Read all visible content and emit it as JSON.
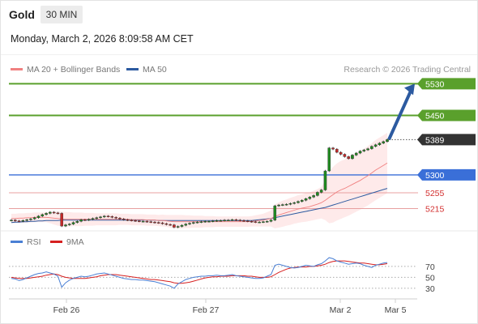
{
  "header": {
    "instrument": "Gold",
    "timeframe": "30 MIN",
    "datetime": "Monday, March 2, 2026 8:09:58 AM CET"
  },
  "legend": {
    "ma20_label": "MA 20 + Bollinger Bands",
    "ma50_label": "MA 50",
    "credit": "Research © 2026 Trading Central"
  },
  "rsi_legend": {
    "rsi_label": "RSI",
    "ma9_label": "9MA"
  },
  "colors": {
    "target_line": "#5aa02c",
    "support_line": "#3a6fd8",
    "last_price_badge": "#333333",
    "resistance_red": "#d32f2f",
    "red_level_line": "#e8a0a0",
    "bollinger_fill": "#fde3e3",
    "ma20": "#f08080",
    "ma50": "#2c5aa0",
    "arrow": "#2c5aa0",
    "rsi": "#4a7fd4",
    "rsi_ma": "#d62020",
    "candle_up": "#1f8a1f",
    "candle_down": "#c62828"
  },
  "chart_data": {
    "type": "candlestick",
    "x_ticks": [
      "Feb 26",
      "Feb 27",
      "Mar 2",
      "Mar 5"
    ],
    "ylim": [
      5165,
      5545
    ],
    "levels": [
      {
        "label": "5530",
        "value": 5530,
        "kind": "target"
      },
      {
        "label": "5450",
        "value": 5450,
        "kind": "target"
      },
      {
        "label": "5389",
        "value": 5389,
        "kind": "last"
      },
      {
        "label": "5300",
        "value": 5300,
        "kind": "support"
      },
      {
        "label": "5255",
        "value": 5255,
        "kind": "red"
      },
      {
        "label": "5215",
        "value": 5215,
        "kind": "red"
      }
    ],
    "closes": [
      5186,
      5184,
      5183,
      5185,
      5187,
      5189,
      5192,
      5196,
      5200,
      5203,
      5206,
      5204,
      5203,
      5171,
      5174,
      5176,
      5180,
      5183,
      5187,
      5186,
      5188,
      5190,
      5192,
      5194,
      5196,
      5195,
      5193,
      5191,
      5189,
      5187,
      5186,
      5185,
      5184,
      5183,
      5183,
      5182,
      5181,
      5180,
      5179,
      5177,
      5175,
      5174,
      5168,
      5170,
      5173,
      5176,
      5178,
      5180,
      5181,
      5182,
      5183,
      5183,
      5184,
      5185,
      5185,
      5186,
      5186,
      5187,
      5186,
      5185,
      5184,
      5183,
      5182,
      5181,
      5181,
      5182,
      5183,
      5186,
      5222,
      5224,
      5225,
      5226,
      5228,
      5230,
      5233,
      5236,
      5240,
      5244,
      5248,
      5256,
      5262,
      5310,
      5368,
      5365,
      5357,
      5352,
      5346,
      5341,
      5350,
      5355,
      5360,
      5363,
      5366,
      5372,
      5376,
      5380,
      5384,
      5389
    ],
    "ma20": [
      5190,
      5190,
      5191,
      5191,
      5192,
      5192,
      5193,
      5193,
      5193,
      5193,
      5192,
      5191,
      5190,
      5189,
      5188,
      5188,
      5188,
      5188,
      5188,
      5188,
      5188,
      5188,
      5188,
      5188,
      5188,
      5188,
      5188,
      5188,
      5188,
      5188,
      5188,
      5187,
      5187,
      5187,
      5187,
      5186,
      5186,
      5186,
      5185,
      5185,
      5184,
      5183,
      5182,
      5182,
      5182,
      5182,
      5182,
      5182,
      5182,
      5182,
      5182,
      5182,
      5182,
      5182,
      5182,
      5182,
      5182,
      5182,
      5182,
      5182,
      5182,
      5182,
      5183,
      5184,
      5185,
      5186,
      5188,
      5190,
      5195,
      5199,
      5202,
      5205,
      5208,
      5211,
      5214,
      5216,
      5218,
      5220,
      5223,
      5226,
      5230,
      5236,
      5243,
      5250,
      5257,
      5262,
      5266,
      5271,
      5276,
      5281,
      5286,
      5292,
      5298,
      5305,
      5312,
      5318,
      5324,
      5330
    ],
    "ma50": [
      5180,
      5181,
      5181,
      5182,
      5182,
      5183,
      5183,
      5184,
      5184,
      5185,
      5185,
      5185,
      5185,
      5186,
      5186,
      5186,
      5186,
      5186,
      5186,
      5186,
      5186,
      5186,
      5186,
      5186,
      5186,
      5186,
      5186,
      5186,
      5186,
      5186,
      5186,
      5186,
      5186,
      5186,
      5186,
      5186,
      5186,
      5186,
      5185,
      5185,
      5185,
      5185,
      5185,
      5185,
      5185,
      5185,
      5185,
      5185,
      5185,
      5185,
      5185,
      5185,
      5185,
      5185,
      5185,
      5185,
      5185,
      5185,
      5185,
      5185,
      5185,
      5185,
      5185,
      5186,
      5187,
      5188,
      5189,
      5190,
      5192,
      5194,
      5196,
      5198,
      5200,
      5202,
      5204,
      5206,
      5208,
      5210,
      5212,
      5214,
      5216,
      5218,
      5221,
      5224,
      5227,
      5230,
      5233,
      5236,
      5239,
      5242,
      5245,
      5248,
      5251,
      5254,
      5257,
      5260,
      5263,
      5266
    ],
    "bb_width": [
      12,
      12,
      12,
      12,
      12,
      12,
      12,
      12,
      12,
      12,
      14,
      16,
      18,
      18,
      18,
      18,
      17,
      17,
      17,
      16,
      16,
      16,
      15,
      15,
      15,
      15,
      15,
      15,
      14,
      14,
      14,
      14,
      14,
      14,
      14,
      14,
      14,
      14,
      14,
      15,
      15,
      16,
      17,
      17,
      17,
      16,
      16,
      15,
      15,
      15,
      14,
      14,
      14,
      13,
      13,
      13,
      13,
      13,
      13,
      13,
      13,
      13,
      13,
      14,
      15,
      16,
      18,
      20,
      30,
      32,
      33,
      33,
      34,
      34,
      35,
      35,
      36,
      36,
      37,
      38,
      40,
      50,
      65,
      70,
      72,
      73,
      73,
      74,
      74,
      74,
      74,
      74,
      75,
      75,
      76,
      76,
      76,
      76
    ],
    "arrow": {
      "from": 5389,
      "to": 5530
    },
    "rsi": {
      "ylim": [
        15,
        95
      ],
      "ticks": [
        70,
        50,
        30
      ],
      "rsi": [
        48,
        47,
        44,
        46,
        49,
        52,
        55,
        57,
        58,
        60,
        58,
        56,
        52,
        32,
        40,
        45,
        48,
        50,
        52,
        51,
        52,
        54,
        56,
        57,
        58,
        56,
        54,
        52,
        50,
        48,
        47,
        46,
        46,
        45,
        45,
        44,
        43,
        42,
        40,
        38,
        36,
        34,
        30,
        38,
        42,
        46,
        48,
        50,
        51,
        52,
        52,
        53,
        53,
        54,
        53,
        53,
        54,
        55,
        53,
        52,
        51,
        50,
        49,
        48,
        48,
        49,
        52,
        55,
        72,
        74,
        72,
        70,
        68,
        67,
        68,
        70,
        72,
        71,
        70,
        73,
        75,
        80,
        86,
        84,
        80,
        78,
        76,
        74,
        75,
        76,
        75,
        72,
        70,
        68,
        72,
        74,
        76,
        77
      ],
      "ma9": [
        50,
        49,
        48,
        48,
        48,
        49,
        50,
        51,
        52,
        54,
        55,
        56,
        55,
        52,
        50,
        49,
        48,
        48,
        48,
        48,
        49,
        50,
        51,
        53,
        54,
        55,
        55,
        55,
        54,
        53,
        52,
        51,
        50,
        49,
        48,
        47,
        46,
        46,
        45,
        44,
        43,
        42,
        40,
        39,
        39,
        40,
        41,
        43,
        45,
        47,
        49,
        50,
        51,
        51,
        52,
        52,
        52,
        53,
        53,
        53,
        53,
        52,
        52,
        51,
        50,
        50,
        50,
        51,
        55,
        59,
        62,
        65,
        67,
        68,
        69,
        69,
        69,
        70,
        70,
        71,
        72,
        74,
        77,
        79,
        80,
        80,
        80,
        79,
        78,
        77,
        76,
        76,
        75,
        74,
        73,
        73,
        74,
        75
      ]
    }
  }
}
